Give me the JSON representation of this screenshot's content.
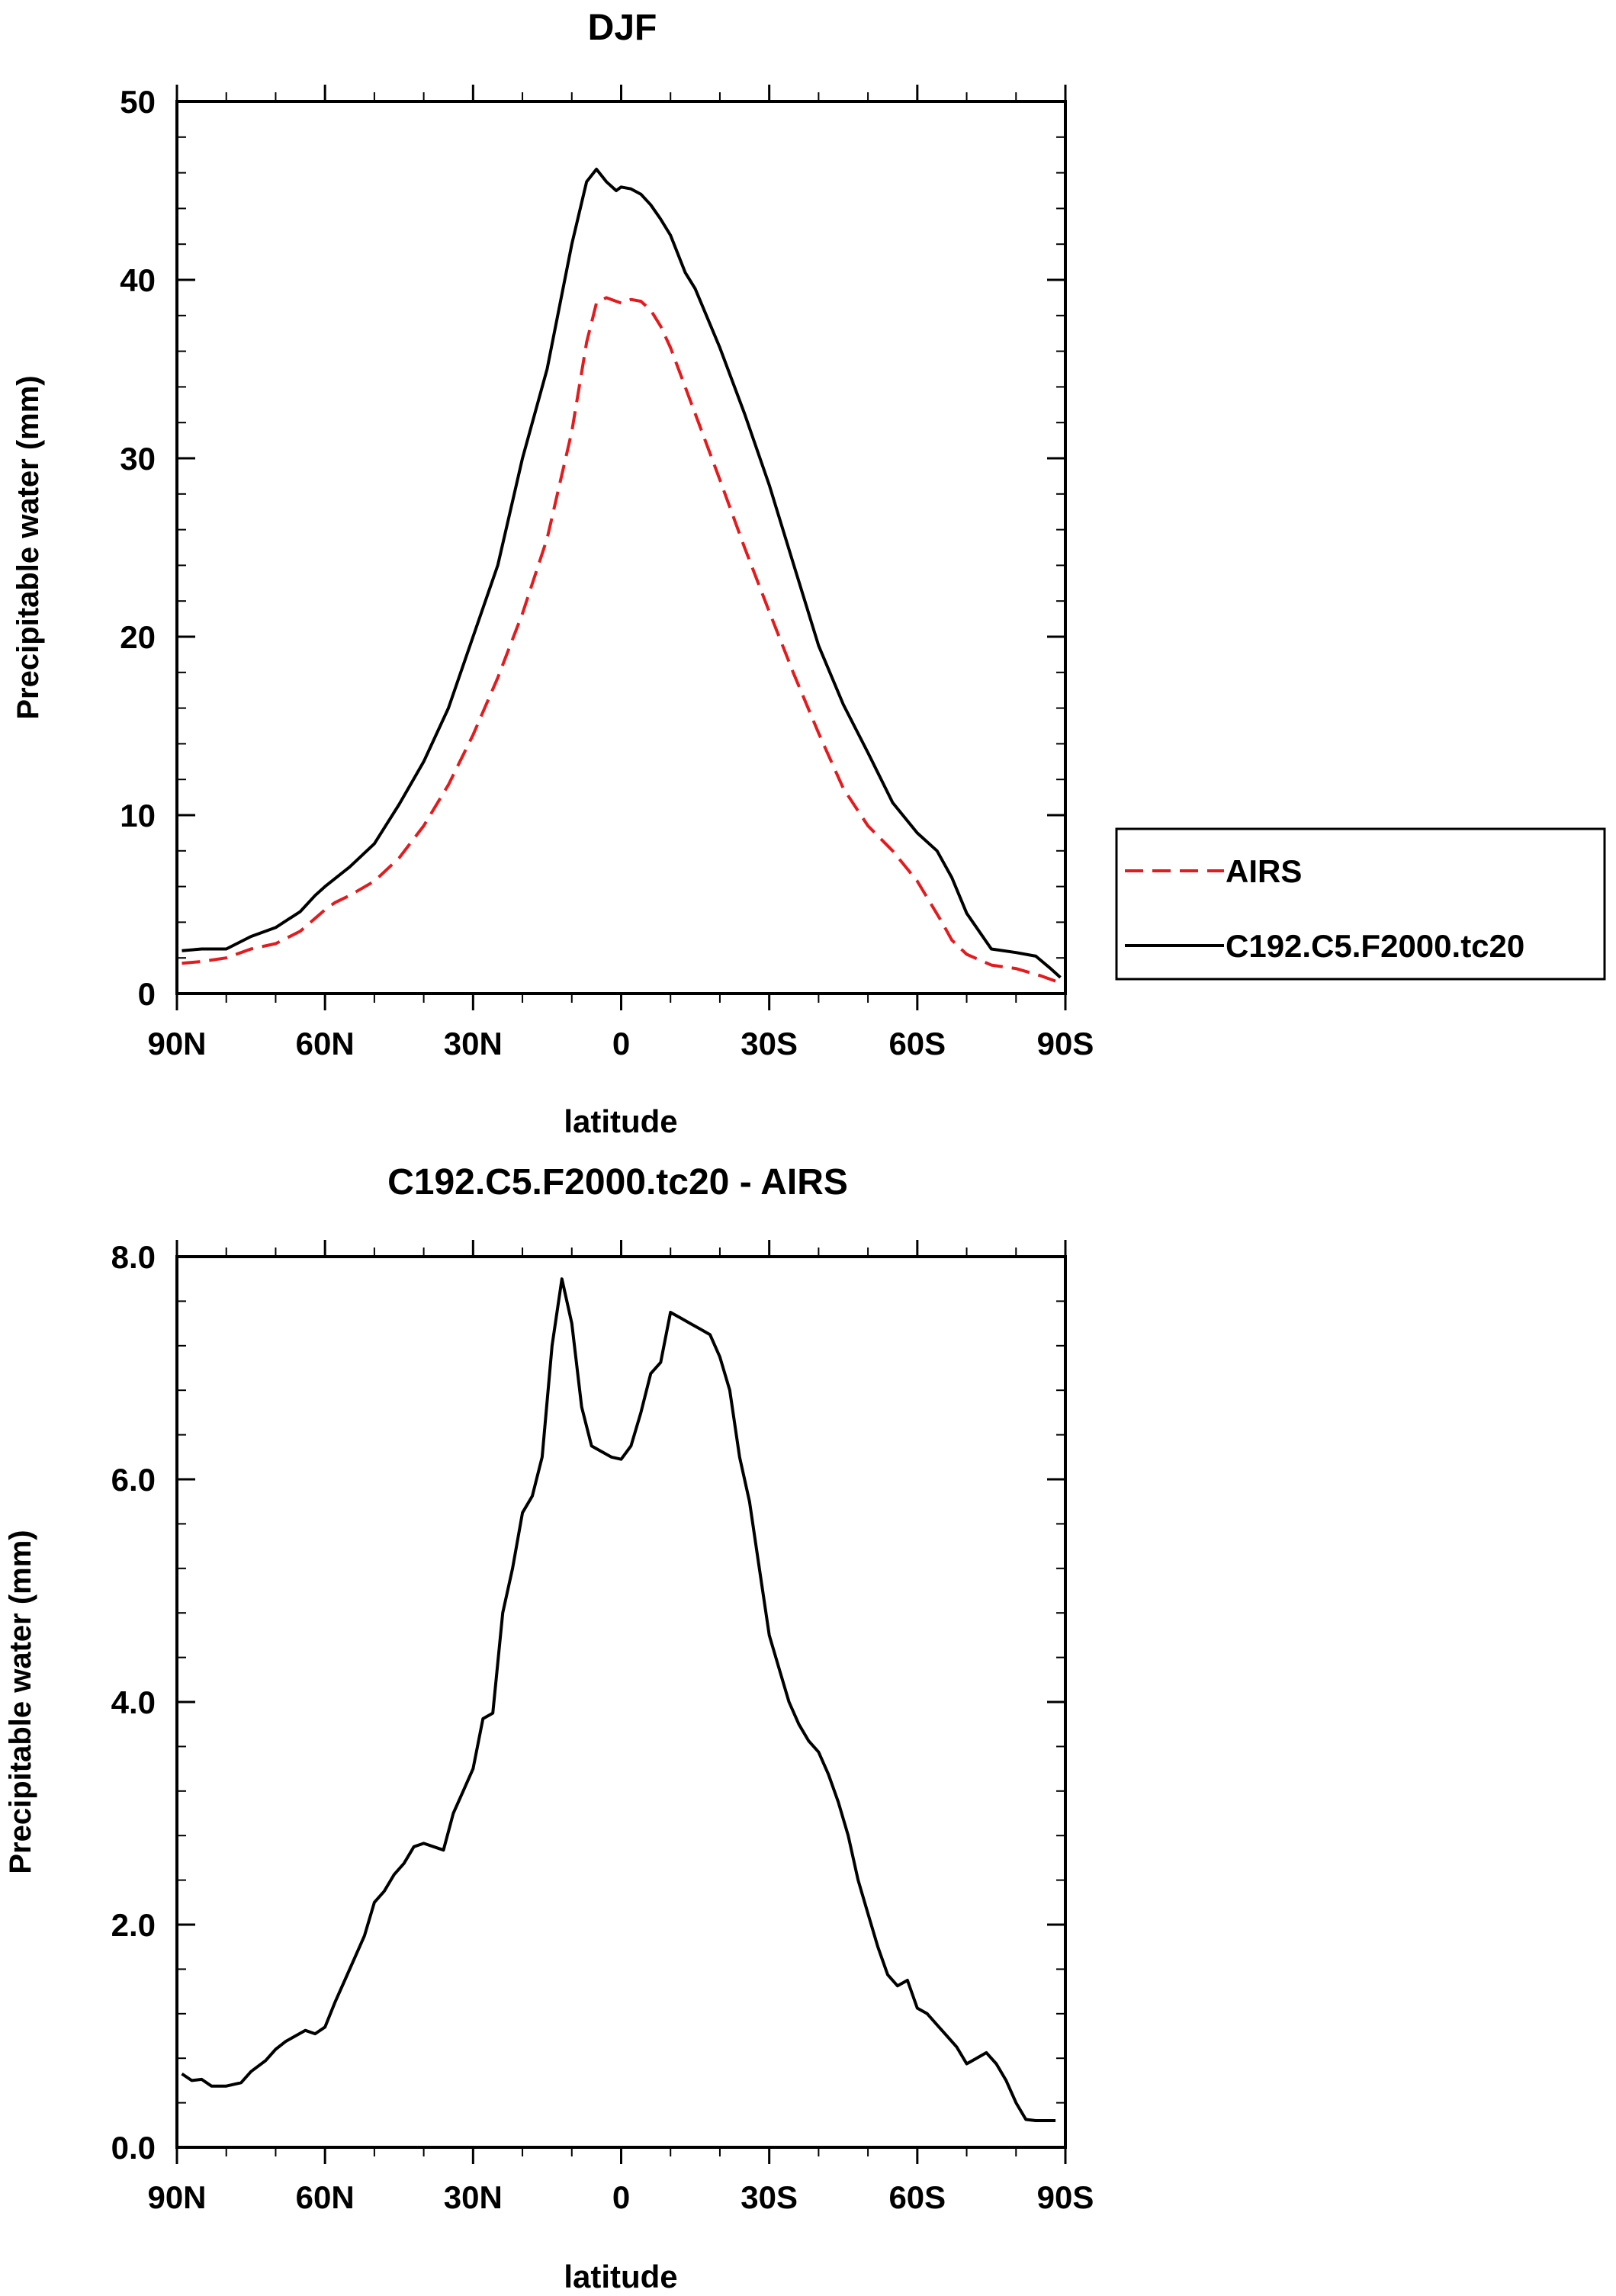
{
  "chart_data": [
    {
      "type": "line",
      "title": "DJF",
      "xlabel": "latitude",
      "ylabel": "Precipitable water (mm)",
      "xlim": [
        90,
        -90
      ],
      "ylim": [
        0,
        50
      ],
      "yticks": [
        0,
        10,
        20,
        30,
        40,
        50
      ],
      "ytick_labels": [
        "0",
        "10",
        "20",
        "30",
        "40",
        "50"
      ],
      "xticks": [
        90,
        60,
        30,
        0,
        -30,
        -60,
        -90
      ],
      "xtick_labels": [
        "90N",
        "60N",
        "30N",
        "0",
        "30S",
        "60S",
        "90S"
      ],
      "legend": {
        "position": "right-outside",
        "entries": [
          {
            "label": "AIRS",
            "color": "#e41a1c",
            "style": "dashed"
          },
          {
            "label": "C192.C5.F2000.tc20",
            "color": "#000000",
            "style": "solid"
          }
        ]
      },
      "series": [
        {
          "name": "AIRS",
          "color": "#e41a1c",
          "style": "dashed",
          "x": [
            89,
            85,
            80,
            75,
            70,
            65,
            60,
            58,
            55,
            50,
            45,
            40,
            35,
            30,
            25,
            20,
            15,
            10,
            7,
            5,
            3,
            1,
            0,
            -2,
            -4,
            -6,
            -8,
            -10,
            -15,
            -20,
            -25,
            -30,
            -35,
            -40,
            -45,
            -50,
            -55,
            -60,
            -65,
            -67,
            -70,
            -75,
            -80,
            -85,
            -89
          ],
          "values": [
            1.7,
            1.8,
            2.0,
            2.5,
            2.8,
            3.5,
            4.7,
            5.1,
            5.5,
            6.3,
            7.6,
            9.4,
            11.7,
            14.5,
            17.7,
            21.3,
            25.5,
            31.5,
            36.5,
            38.7,
            39.0,
            38.8,
            38.7,
            38.9,
            38.8,
            38.3,
            37.4,
            36.2,
            32.5,
            28.8,
            25.0,
            21.4,
            17.9,
            14.6,
            11.5,
            9.4,
            8.0,
            6.3,
            4.0,
            3.0,
            2.2,
            1.6,
            1.4,
            1.0,
            0.6
          ]
        },
        {
          "name": "C192.C5.F2000.tc20",
          "color": "#000000",
          "style": "solid",
          "x": [
            89,
            85,
            82,
            80,
            75,
            70,
            65,
            62,
            60,
            55,
            50,
            45,
            40,
            35,
            30,
            25,
            20,
            15,
            10,
            7,
            5,
            3,
            1,
            0,
            -2,
            -4,
            -6,
            -8,
            -10,
            -13,
            -15,
            -20,
            -25,
            -30,
            -35,
            -40,
            -45,
            -50,
            -55,
            -60,
            -64,
            -67,
            -70,
            -75,
            -80,
            -84,
            -87,
            -89
          ],
          "values": [
            2.4,
            2.5,
            2.5,
            2.5,
            3.2,
            3.7,
            4.6,
            5.5,
            6.0,
            7.1,
            8.4,
            10.6,
            13.0,
            16.0,
            20.0,
            24.0,
            30.0,
            35.0,
            42.0,
            45.5,
            46.2,
            45.5,
            45.0,
            45.2,
            45.1,
            44.8,
            44.2,
            43.4,
            42.5,
            40.4,
            39.5,
            36.2,
            32.5,
            28.5,
            24.0,
            19.5,
            16.2,
            13.5,
            10.7,
            9.0,
            8.0,
            6.5,
            4.5,
            2.5,
            2.3,
            2.1,
            1.4,
            0.9
          ]
        }
      ]
    },
    {
      "type": "line",
      "title": "C192.C5.F2000.tc20 - AIRS",
      "xlabel": "latitude",
      "ylabel": "Precipitable water (mm)",
      "xlim": [
        90,
        -90
      ],
      "ylim": [
        0,
        8
      ],
      "yticks": [
        0,
        2,
        4,
        6,
        8
      ],
      "ytick_labels": [
        "0.0",
        "2.0",
        "4.0",
        "6.0",
        "8.0"
      ],
      "xticks": [
        90,
        60,
        30,
        0,
        -30,
        -60,
        -90
      ],
      "xtick_labels": [
        "90N",
        "60N",
        "30N",
        "0",
        "30S",
        "60S",
        "90S"
      ],
      "series": [
        {
          "name": "C192.C5.F2000.tc20 - AIRS",
          "color": "#000000",
          "style": "solid",
          "x": [
            89,
            87,
            85,
            83,
            80,
            77,
            75,
            72,
            70,
            68,
            66,
            64,
            62,
            60,
            58,
            56,
            54,
            52,
            50,
            48,
            46,
            44,
            42,
            40,
            38,
            36,
            34,
            32,
            30,
            28,
            26,
            24,
            22,
            20,
            18,
            16,
            14,
            12,
            10,
            8,
            6,
            4,
            2,
            0,
            -2,
            -4,
            -6,
            -8,
            -10,
            -12,
            -14,
            -16,
            -18,
            -20,
            -22,
            -24,
            -26,
            -28,
            -30,
            -32,
            -34,
            -36,
            -38,
            -40,
            -42,
            -44,
            -46,
            -48,
            -50,
            -52,
            -54,
            -56,
            -58,
            -60,
            -62,
            -64,
            -66,
            -68,
            -70,
            -72,
            -74,
            -76,
            -78,
            -80,
            -82,
            -84,
            -86,
            -88
          ],
          "values": [
            0.66,
            0.6,
            0.61,
            0.55,
            0.55,
            0.58,
            0.68,
            0.78,
            0.88,
            0.95,
            1.0,
            1.05,
            1.02,
            1.08,
            1.3,
            1.5,
            1.7,
            1.9,
            2.2,
            2.3,
            2.45,
            2.55,
            2.7,
            2.73,
            2.7,
            2.67,
            3.0,
            3.2,
            3.4,
            3.85,
            3.9,
            4.8,
            5.2,
            5.7,
            5.85,
            6.2,
            7.2,
            7.8,
            7.4,
            6.65,
            6.3,
            6.25,
            6.2,
            6.18,
            6.3,
            6.6,
            6.95,
            7.05,
            7.5,
            7.45,
            7.4,
            7.35,
            7.3,
            7.1,
            6.8,
            6.2,
            5.8,
            5.2,
            4.6,
            4.3,
            4.0,
            3.8,
            3.65,
            3.55,
            3.35,
            3.1,
            2.8,
            2.4,
            2.1,
            1.8,
            1.55,
            1.45,
            1.5,
            1.25,
            1.2,
            1.1,
            1.0,
            0.9,
            0.75,
            0.8,
            0.85,
            0.75,
            0.6,
            0.4,
            0.25,
            0.24,
            0.24,
            0.24
          ]
        }
      ]
    }
  ]
}
